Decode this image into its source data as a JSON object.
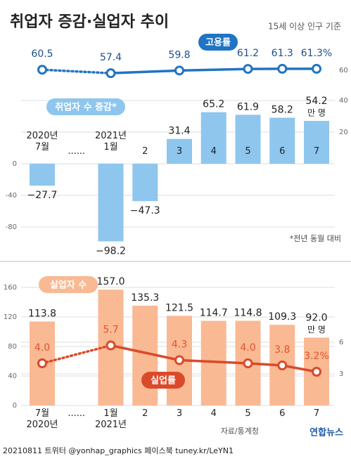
{
  "title": "취업자 증감·실업자 추이",
  "subtitle": "15세 이상 인구 기준",
  "source": "자료/통계청",
  "logo": "연합뉴스",
  "footer": "20210811 트위터 @yonhap_graphics 페이스북 tuney.kr/LeYN1",
  "chart_data": [
    {
      "type": "line",
      "series": [
        {
          "name": "고용률",
          "color": "#1f74c4",
          "axis": "y2",
          "values": [
            60.5,
            null,
            57.4,
            null,
            59.8,
            null,
            61.2,
            61.3,
            61.3
          ],
          "value_labels": [
            "60.5",
            null,
            "57.4",
            null,
            "59.8",
            null,
            "61.2",
            "61.3",
            "61.3%"
          ]
        }
      ],
      "y2lim": [
        55,
        65
      ],
      "y2ticks": [
        60
      ]
    },
    {
      "type": "bar",
      "categories": [
        "2020년\n7월",
        "......",
        "2021년\n1월",
        "2",
        "3",
        "4",
        "5",
        "6",
        "7"
      ],
      "series": [
        {
          "name": "취업자 수 증감*",
          "color": "#8ec6ee",
          "values": [
            -27.7,
            null,
            -98.2,
            -47.3,
            31.4,
            65.2,
            61.9,
            58.2,
            54.2
          ],
          "value_labels": [
            "−27.7",
            null,
            "−98.2",
            "−47.3",
            "31.4",
            "65.2",
            "61.9",
            "58.2",
            "54.2"
          ]
        }
      ],
      "unit": "만 명",
      "note": "*전년 동월 대비",
      "ylim": [
        -110,
        80
      ],
      "yticks": [
        -80,
        -40,
        0
      ],
      "y2lim": [
        -55,
        40
      ],
      "y2ticks": [
        20,
        40
      ],
      "grid": true
    },
    {
      "type": "bar",
      "categories": [
        "7월\n2020년",
        "......",
        "1월\n2021년",
        "2",
        "3",
        "4",
        "5",
        "6",
        "7"
      ],
      "series": [
        {
          "name": "실업자 수",
          "color": "#f9b993",
          "values": [
            113.8,
            null,
            157.0,
            135.3,
            121.5,
            114.7,
            114.8,
            109.3,
            92.0
          ],
          "value_labels": [
            "113.8",
            null,
            "157.0",
            "135.3",
            "121.5",
            "114.7",
            "114.8",
            "109.3",
            "92.0"
          ]
        },
        {
          "name": "실업률",
          "color": "#d94a2b",
          "axis": "y2",
          "type": "line",
          "values": [
            4.0,
            null,
            5.7,
            null,
            4.3,
            null,
            4.0,
            3.8,
            3.2
          ],
          "value_labels": [
            "4.0",
            null,
            "5.7",
            null,
            "4.3",
            null,
            "4.0",
            "3.8",
            "3.2%"
          ]
        }
      ],
      "unit": "만 명",
      "ylim": [
        0,
        170
      ],
      "yticks": [
        0,
        40,
        80,
        120,
        160
      ],
      "y2lim": [
        0,
        11.9
      ],
      "y2ticks": [
        3,
        6
      ],
      "grid": true
    }
  ]
}
